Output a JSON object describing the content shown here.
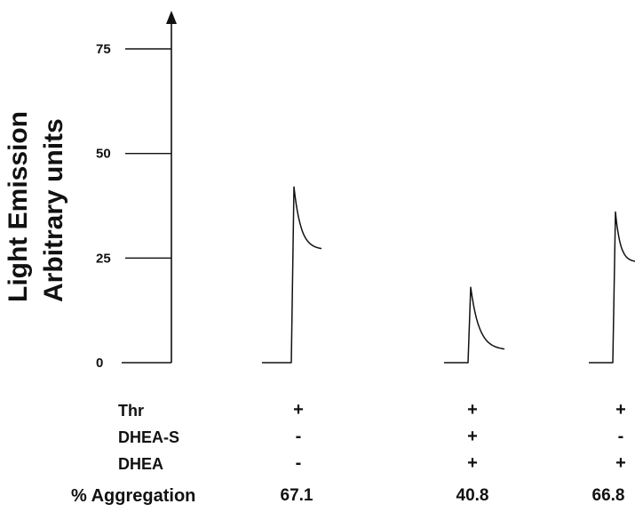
{
  "chart_data": {
    "type": "line",
    "title": "",
    "ylabel_line1": "Light Emission",
    "ylabel_line2": "Arbitrary units",
    "xlabel": "",
    "ylim": [
      0,
      75
    ],
    "yticks": [
      0,
      25,
      50,
      75
    ],
    "series": [
      {
        "baseline": 0,
        "peak": 42,
        "end": 27
      },
      {
        "baseline": 0,
        "peak": 18,
        "end": 3
      },
      {
        "baseline": 0,
        "peak": 36,
        "end": 24
      }
    ]
  },
  "conditions": {
    "labels": [
      "Thr",
      "DHEA-S",
      "DHEA"
    ],
    "values": [
      [
        "+",
        "+",
        "+"
      ],
      [
        "-",
        "+",
        "-"
      ],
      [
        "-",
        "+",
        "+"
      ]
    ]
  },
  "aggregation": {
    "label": "% Aggregation",
    "values": [
      "67.1",
      "40.8",
      "66.8"
    ]
  }
}
